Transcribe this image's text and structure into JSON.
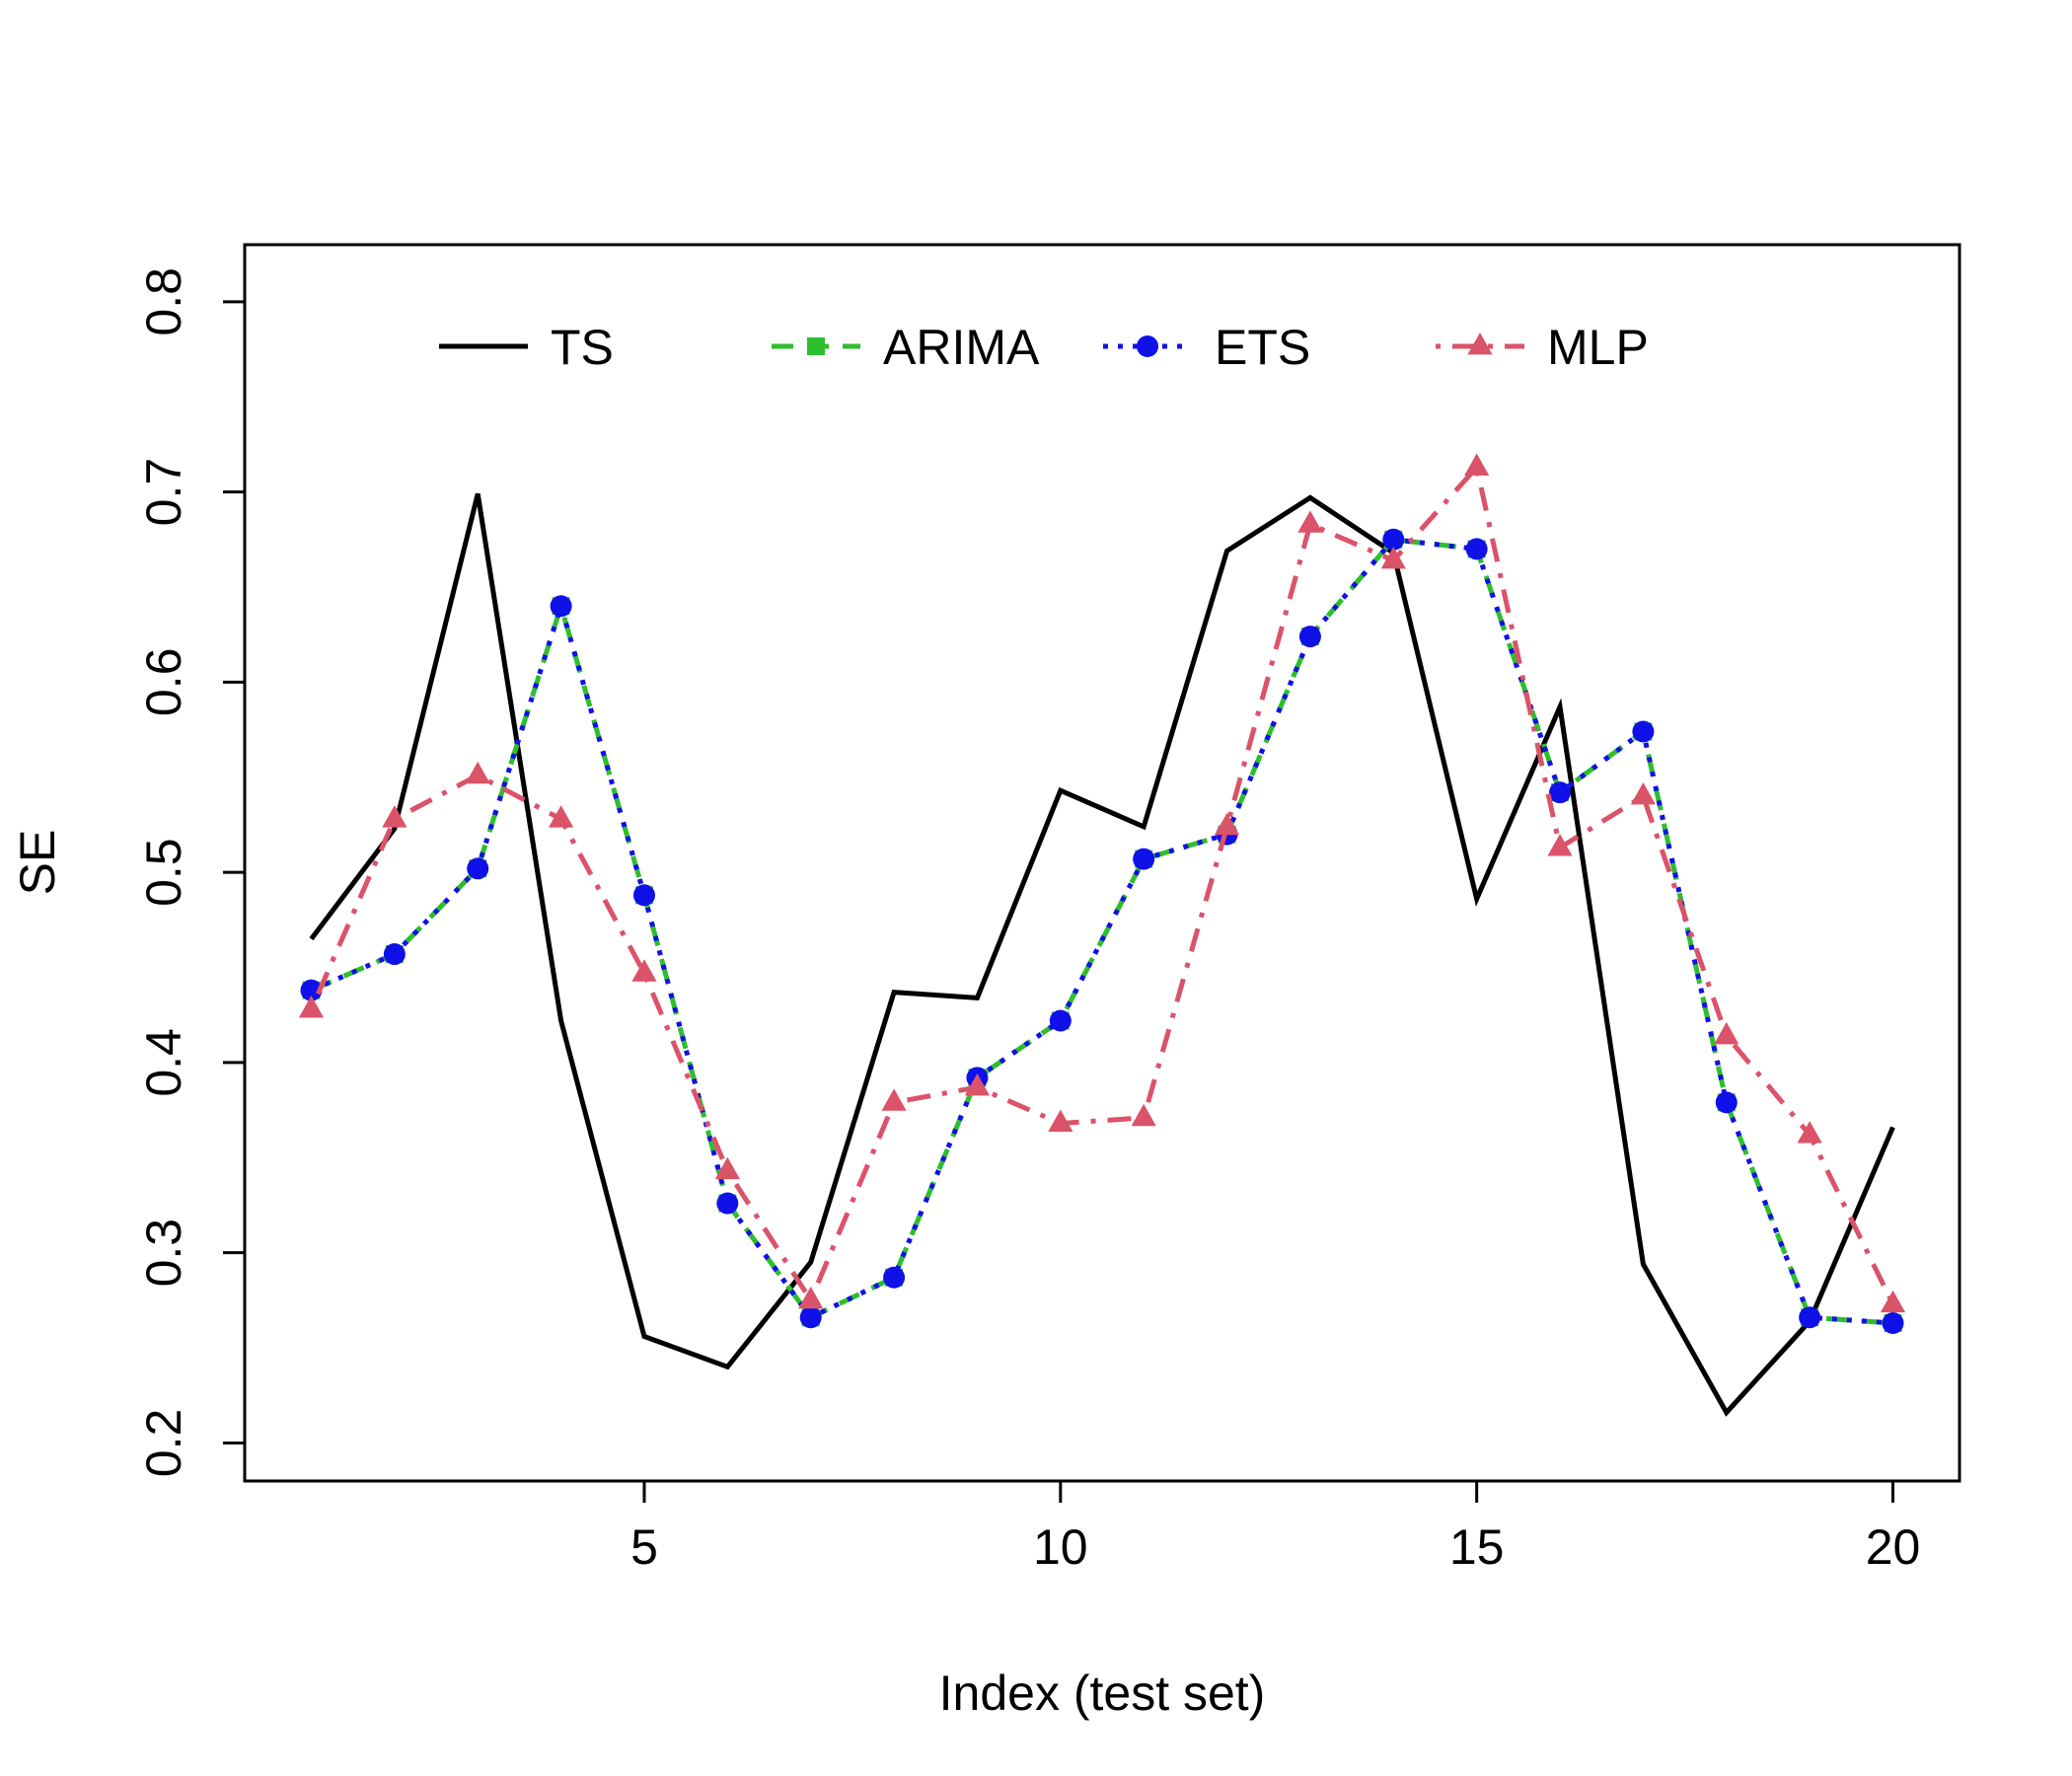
{
  "chart_data": {
    "type": "line",
    "title": "",
    "xlabel": "Index (test set)",
    "ylabel": "SE",
    "xlim": [
      0.2,
      20.8
    ],
    "ylim": [
      0.18,
      0.83
    ],
    "x_ticks": [
      5,
      10,
      15,
      20
    ],
    "y_ticks": [
      0.2,
      0.3,
      0.4,
      0.5,
      0.6,
      0.7,
      0.8
    ],
    "x_tick_labels": [
      "5",
      "10",
      "15",
      "20"
    ],
    "y_tick_labels": [
      "0.2",
      "0.3",
      "0.4",
      "0.5",
      "0.6",
      "0.7",
      "0.8"
    ],
    "grid": false,
    "legend_position": "top",
    "x": [
      1,
      2,
      3,
      4,
      5,
      6,
      7,
      8,
      9,
      10,
      11,
      12,
      13,
      14,
      15,
      16,
      17,
      18,
      19,
      20
    ],
    "series": [
      {
        "name": "TS",
        "color": "#000000",
        "line_style": "solid",
        "marker": "none",
        "values": [
          0.465,
          0.523,
          0.699,
          0.422,
          0.256,
          0.24,
          0.295,
          0.437,
          0.434,
          0.543,
          0.524,
          0.669,
          0.697,
          0.668,
          0.486,
          0.587,
          0.294,
          0.216,
          0.264,
          0.366
        ]
      },
      {
        "name": "ARIMA",
        "color": "#2DBE2D",
        "line_style": "dashed",
        "marker": "square",
        "values": [
          0.438,
          0.457,
          0.502,
          0.64,
          0.488,
          0.326,
          0.266,
          0.287,
          0.392,
          0.422,
          0.507,
          0.52,
          0.624,
          0.675,
          0.67,
          0.542,
          0.574,
          0.379,
          0.266,
          0.263
        ]
      },
      {
        "name": "ETS",
        "color": "#1010E8",
        "line_style": "dotted",
        "marker": "circle",
        "values": [
          0.438,
          0.457,
          0.502,
          0.64,
          0.488,
          0.326,
          0.266,
          0.287,
          0.392,
          0.422,
          0.507,
          0.52,
          0.624,
          0.675,
          0.67,
          0.542,
          0.574,
          0.379,
          0.266,
          0.263
        ]
      },
      {
        "name": "MLP",
        "color": "#DB5369",
        "line_style": "dashdot",
        "marker": "triangle",
        "values": [
          0.428,
          0.528,
          0.551,
          0.528,
          0.447,
          0.343,
          0.275,
          0.379,
          0.387,
          0.368,
          0.371,
          0.524,
          0.683,
          0.664,
          0.713,
          0.513,
          0.54,
          0.414,
          0.362,
          0.273
        ]
      }
    ]
  }
}
